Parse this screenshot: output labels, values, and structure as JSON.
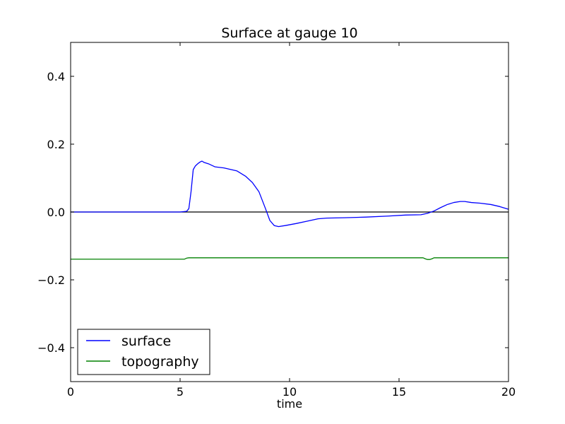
{
  "chart_data": {
    "type": "line",
    "title": "Surface at gauge 10",
    "xlabel": "time",
    "ylabel": "",
    "xlim": [
      0,
      20
    ],
    "ylim": [
      -0.5,
      0.5
    ],
    "xticks": [
      0,
      5,
      10,
      15,
      20
    ],
    "yticks": [
      -0.4,
      -0.2,
      0.0,
      0.2,
      0.4
    ],
    "ytick_labels": [
      "−0.4",
      "−0.2",
      "0.0",
      "0.2",
      "0.4"
    ],
    "grid": false,
    "legend_position": "lower-left",
    "reference_line": {
      "y": 0,
      "color": "#000000"
    },
    "series": [
      {
        "name": "surface",
        "color": "#0000ff",
        "x": [
          0,
          5.0,
          5.3,
          5.4,
          5.5,
          5.6,
          5.7,
          5.8,
          5.9,
          6.0,
          6.1,
          6.3,
          6.6,
          7.0,
          7.6,
          8.0,
          8.3,
          8.6,
          8.9,
          9.1,
          9.3,
          9.5,
          9.8,
          10.3,
          10.8,
          11.3,
          11.7,
          12.5,
          13.5,
          14.5,
          15.3,
          16.0,
          16.3,
          16.6,
          16.9,
          17.2,
          17.5,
          17.8,
          18.0,
          18.3,
          18.7,
          19.2,
          19.6,
          20.0
        ],
        "y": [
          0.0,
          0.0,
          0.002,
          0.01,
          0.06,
          0.125,
          0.136,
          0.142,
          0.147,
          0.15,
          0.146,
          0.142,
          0.133,
          0.13,
          0.121,
          0.105,
          0.087,
          0.06,
          0.01,
          -0.025,
          -0.04,
          -0.043,
          -0.04,
          -0.034,
          -0.027,
          -0.02,
          -0.018,
          -0.017,
          -0.015,
          -0.012,
          -0.009,
          -0.008,
          -0.004,
          0.003,
          0.013,
          0.022,
          0.028,
          0.031,
          0.031,
          0.028,
          0.026,
          0.022,
          0.016,
          0.008
        ]
      },
      {
        "name": "topography",
        "color": "#008000",
        "x": [
          0,
          5.2,
          5.3,
          5.4,
          16.1,
          16.2,
          16.3,
          16.4,
          16.5,
          16.6,
          20.0
        ],
        "y": [
          -0.139,
          -0.139,
          -0.136,
          -0.135,
          -0.135,
          -0.138,
          -0.14,
          -0.14,
          -0.138,
          -0.135,
          -0.135
        ]
      }
    ]
  }
}
